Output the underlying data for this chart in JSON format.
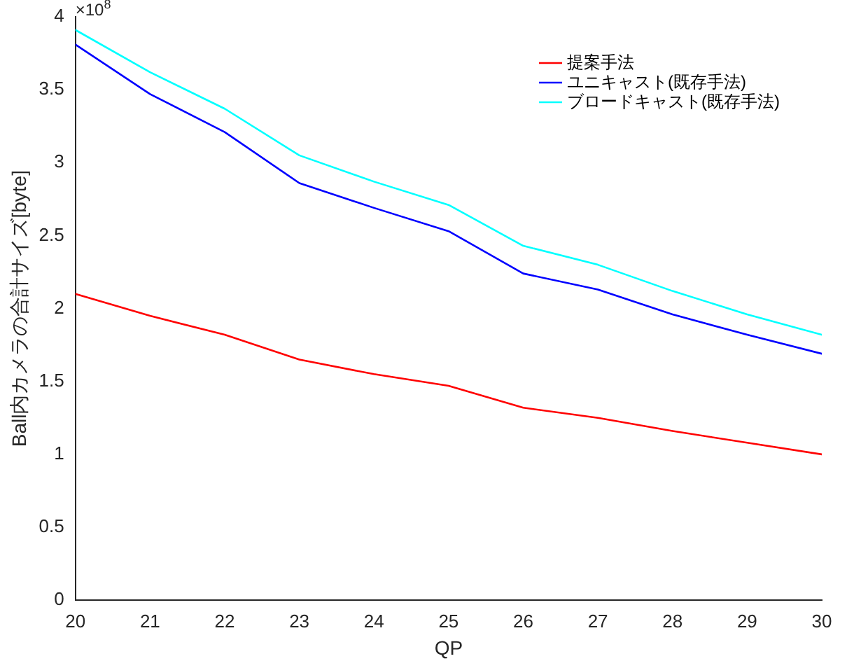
{
  "chart_data": {
    "type": "line",
    "xlabel": "QP",
    "ylabel": "Ball内カメラの合計サイズ[byte]",
    "annotations": [
      "×10$^{8}$"
    ],
    "x": [
      20,
      21,
      22,
      23,
      24,
      25,
      26,
      27,
      28,
      29,
      30
    ],
    "xlim": [
      20,
      30
    ],
    "xticks": [
      20,
      21,
      22,
      23,
      24,
      25,
      26,
      27,
      28,
      29,
      30
    ],
    "ylim": [
      0,
      4
    ],
    "yticks": [
      0,
      0.5,
      1,
      1.5,
      2,
      2.5,
      3,
      3.5,
      4
    ],
    "grid": false,
    "legend": "top right",
    "marker": "none",
    "line_style": "solid",
    "series": [
      {
        "name": "提案手法",
        "color": "#ff0000",
        "values": [
          2.1,
          1.95,
          1.82,
          1.65,
          1.55,
          1.47,
          1.32,
          1.25,
          1.16,
          1.08,
          1.0
        ]
      },
      {
        "name": "ユニキャスト(既存手法)",
        "color": "#0000ff",
        "values": [
          3.81,
          3.47,
          3.21,
          2.86,
          2.69,
          2.53,
          2.24,
          2.13,
          1.96,
          1.82,
          1.69
        ]
      },
      {
        "name": "ブロードキャスト(既存手法)",
        "color": "#00ffff",
        "values": [
          3.91,
          3.62,
          3.37,
          3.05,
          2.87,
          2.71,
          2.43,
          2.3,
          2.12,
          1.96,
          1.82
        ]
      }
    ]
  }
}
